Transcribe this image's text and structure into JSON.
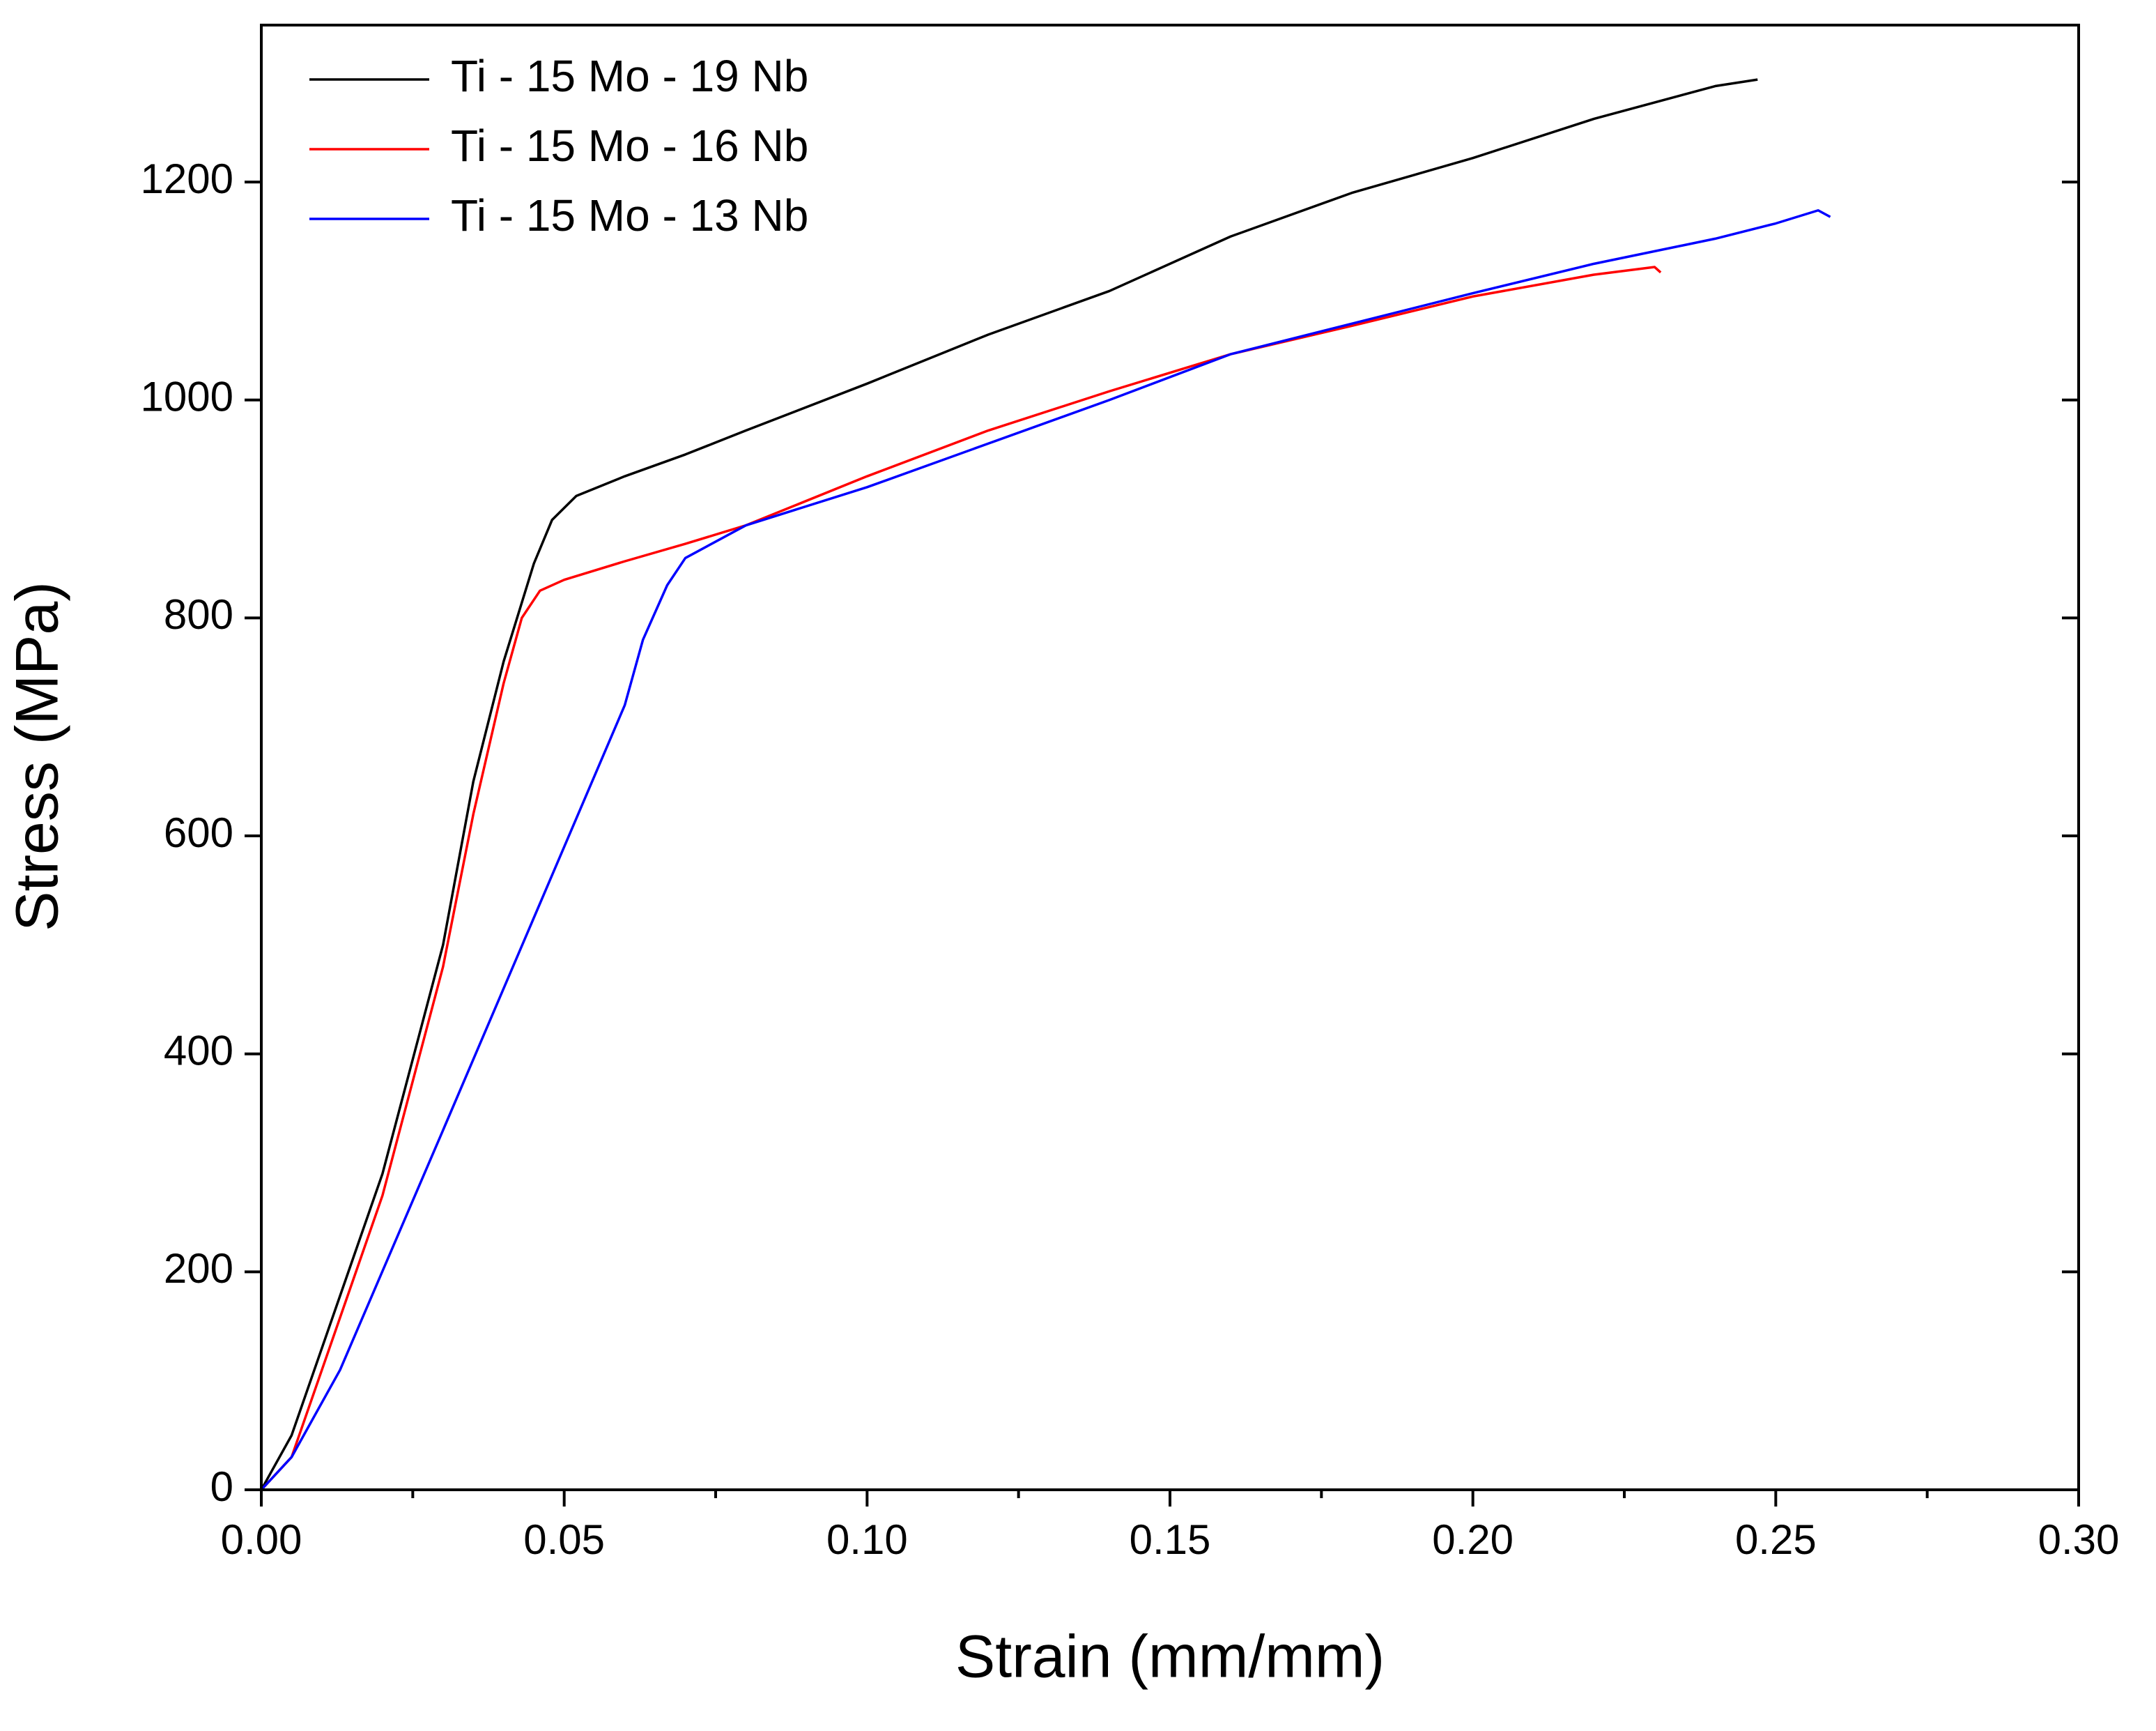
{
  "chart_data": {
    "type": "line",
    "xlabel": "Strain (mm/mm)",
    "ylabel": "Stress (MPa)",
    "xlim": [
      0,
      0.3
    ],
    "ylim": [
      0,
      1344
    ],
    "xticks": [
      {
        "value": 0,
        "label": "0.00"
      },
      {
        "value": 0.05,
        "label": "0.05"
      },
      {
        "value": 0.1,
        "label": "0.10"
      },
      {
        "value": 0.15,
        "label": "0.15"
      },
      {
        "value": 0.2,
        "label": "0.20"
      },
      {
        "value": 0.25,
        "label": "0.25"
      },
      {
        "value": 0.3,
        "label": "0.30"
      }
    ],
    "yticks": [
      0,
      200,
      400,
      600,
      800,
      1000,
      1200
    ],
    "x_minor_ticks": true,
    "grid": false,
    "legend": "upper left",
    "series": [
      {
        "name": "Ti - 15 Mo - 19 Nb",
        "color": "#000000",
        "x": [
          0,
          0.005,
          0.01,
          0.02,
          0.03,
          0.035,
          0.04,
          0.045,
          0.048,
          0.052,
          0.06,
          0.07,
          0.08,
          0.1,
          0.12,
          0.14,
          0.16,
          0.18,
          0.2,
          0.22,
          0.24,
          0.247
        ],
        "values": [
          0,
          50,
          130,
          290,
          500,
          650,
          760,
          850,
          890,
          912,
          930,
          950,
          972,
          1015,
          1060,
          1100,
          1150,
          1190,
          1222,
          1258,
          1288,
          1294
        ]
      },
      {
        "name": "Ti - 15 Mo - 16 Nb",
        "color": "#ff0000",
        "x": [
          0,
          0.005,
          0.01,
          0.02,
          0.03,
          0.035,
          0.04,
          0.043,
          0.046,
          0.05,
          0.06,
          0.07,
          0.08,
          0.1,
          0.12,
          0.14,
          0.16,
          0.18,
          0.2,
          0.22,
          0.23,
          0.231
        ],
        "values": [
          0,
          30,
          110,
          270,
          480,
          620,
          740,
          800,
          825,
          835,
          852,
          868,
          885,
          930,
          972,
          1008,
          1042,
          1068,
          1095,
          1115,
          1122,
          1117
        ]
      },
      {
        "name": "Ti - 15 Mo - 13 Nb",
        "color": "#0000ff",
        "x": [
          0,
          0.005,
          0.013,
          0.03,
          0.05,
          0.06,
          0.063,
          0.067,
          0.07,
          0.08,
          0.1,
          0.12,
          0.14,
          0.16,
          0.18,
          0.2,
          0.22,
          0.24,
          0.25,
          0.257,
          0.259
        ],
        "values": [
          0,
          30,
          110,
          330,
          590,
          720,
          780,
          830,
          855,
          885,
          920,
          960,
          1000,
          1042,
          1070,
          1098,
          1125,
          1148,
          1162,
          1174,
          1168
        ]
      }
    ]
  }
}
